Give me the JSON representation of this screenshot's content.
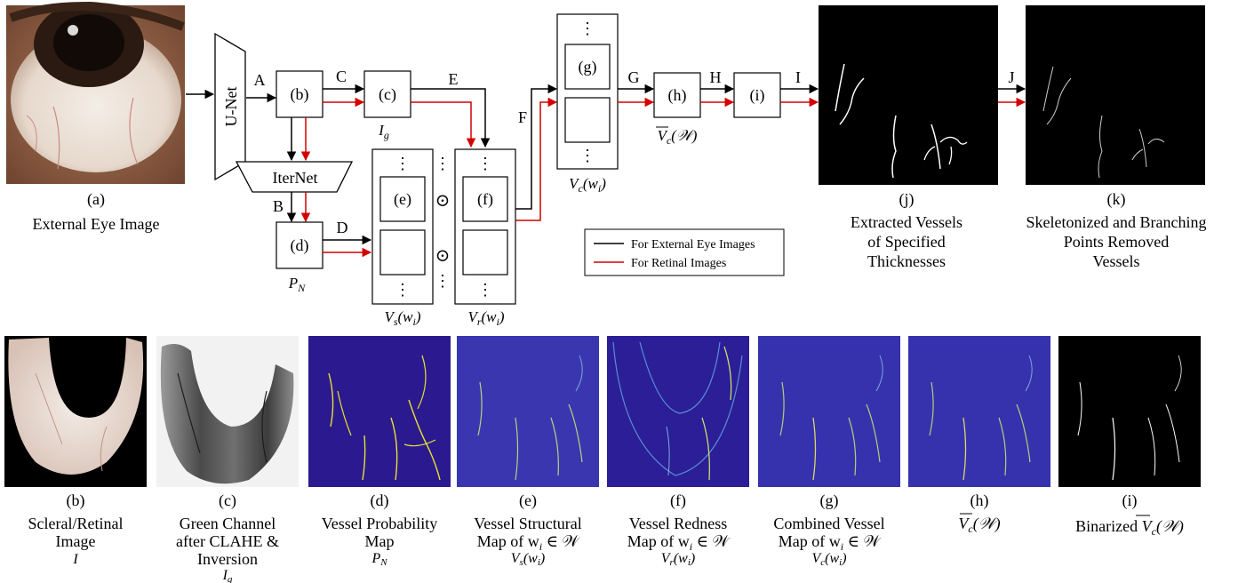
{
  "pipeline": {
    "input_image": {
      "id": "(a)",
      "caption": "External Eye Image"
    },
    "unet_label": "U-Net",
    "iternet_label": "IterNet",
    "boxes": {
      "b": "(b)",
      "c": "(c)",
      "d": "(d)",
      "e": "(e)",
      "f": "(f)",
      "g": "(g)",
      "h": "(h)",
      "i": "(i)"
    },
    "arrow_labels": {
      "A": "A",
      "B": "B",
      "C": "C",
      "D": "D",
      "E": "E",
      "F": "F",
      "G": "G",
      "H": "H",
      "I": "I",
      "J": "J"
    },
    "math_labels": {
      "Ig": "I",
      "Ig_sub": "g",
      "PN": "P",
      "PN_sub": "N",
      "Vs": "V",
      "Vs_sub": "s",
      "Vs_arg": "(w",
      "Vs_arg_sub": "i",
      "Vs_arg_end": ")",
      "Vr": "V",
      "Vr_sub": "r",
      "Vc": "V",
      "Vc_sub": "c",
      "Vc_bar": "V",
      "Vc_bar_sub": "c",
      "W": "(𝒲)"
    },
    "dots": "⋮",
    "odot": "⊙",
    "legend": {
      "black": "For External Eye Images",
      "red": "For Retinal Images"
    },
    "colors": {
      "external": "#000000",
      "retinal": "#d40000"
    },
    "output_j": {
      "id": "(j)",
      "line1": "Extracted Vessels",
      "line2": "of Specified",
      "line3": "Thicknesses"
    },
    "output_k": {
      "id": "(k)",
      "line1": "Skeletonized and Branching",
      "line2": "Points Removed",
      "line3": "Vessels"
    }
  },
  "bottom_row": [
    {
      "id": "(b)",
      "line1": "Scleral/Retinal",
      "line2": "Image",
      "line3": "I"
    },
    {
      "id": "(c)",
      "line1": "Green Channel",
      "line2": "after CLAHE &",
      "line3": "Inversion",
      "line4": "I",
      "line4_sub": "g"
    },
    {
      "id": "(d)",
      "line1": "Vessel Probability",
      "line2": "Map",
      "line3": "P",
      "line3_sub": "N"
    },
    {
      "id": "(e)",
      "line1": "Vessel Structural",
      "line2": "Map of w",
      "line2_sub": "i",
      "line2_end": " ∈ 𝒲",
      "line3": "V",
      "line3_sub": "s",
      "line3_end": "(w",
      "line3_sub2": "i",
      "line3_end2": ")"
    },
    {
      "id": "(f)",
      "line1": "Vessel Redness",
      "line2": "Map of w",
      "line2_sub": "i",
      "line2_end": " ∈ 𝒲",
      "line3": "V",
      "line3_sub": "r",
      "line3_end": "(w",
      "line3_sub2": "i",
      "line3_end2": ")"
    },
    {
      "id": "(g)",
      "line1": "Combined Vessel",
      "line2": "Map of w",
      "line2_sub": "i",
      "line2_end": " ∈ 𝒲",
      "line3": "V",
      "line3_sub": "c",
      "line3_end": "(w",
      "line3_sub2": "i",
      "line3_end2": ")"
    },
    {
      "id": "(h)",
      "line1": "V",
      "line1_sub": "c",
      "line1_end": "(𝒲)"
    },
    {
      "id": "(i)",
      "line1": "Binarized ",
      "line1_v": "V",
      "line1_sub": "c",
      "line1_end": "(𝒲)"
    }
  ]
}
